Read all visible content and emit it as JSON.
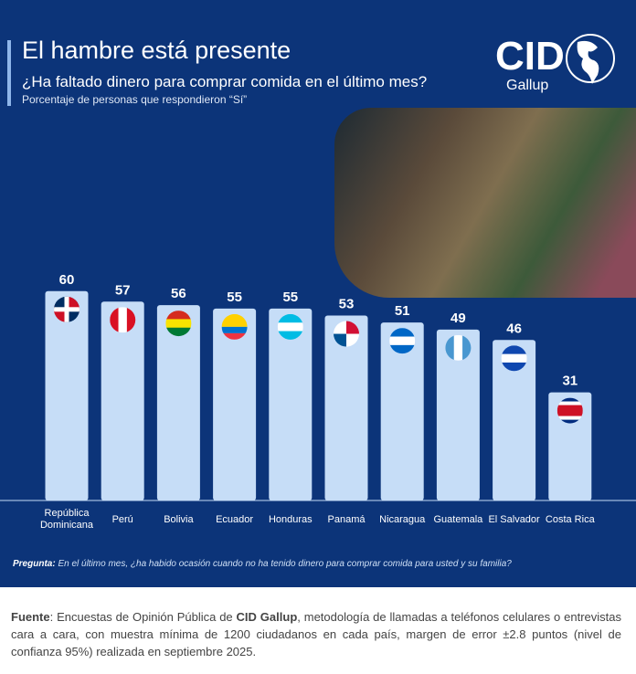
{
  "header": {
    "title": "El hambre está presente",
    "subtitle": "¿Ha faltado dinero para comprar comida en el último mes?",
    "note": "Porcentaje de personas que respondieron “Sí”"
  },
  "logo": {
    "text": "CID",
    "sub": "Gallup"
  },
  "colors": {
    "background": "#0c3479",
    "bar": "#c6ddf7",
    "text": "#ffffff"
  },
  "chart_data": {
    "type": "bar",
    "categories": [
      "República Dominicana",
      "Perú",
      "Bolivia",
      "Ecuador",
      "Honduras",
      "Panamá",
      "Nicaragua",
      "Guatemala",
      "El Salvador",
      "Costa Rica"
    ],
    "values": [
      60,
      57,
      56,
      55,
      55,
      53,
      51,
      49,
      46,
      31
    ],
    "flags": [
      "dominican-republic-flag-icon",
      "peru-flag-icon",
      "bolivia-flag-icon",
      "ecuador-flag-icon",
      "honduras-flag-icon",
      "panama-flag-icon",
      "nicaragua-flag-icon",
      "guatemala-flag-icon",
      "el-salvador-flag-icon",
      "costa-rica-flag-icon"
    ],
    "title": "",
    "xlabel": "",
    "ylabel": "",
    "ylim": [
      0,
      60
    ],
    "grid": false,
    "data_labels": true
  },
  "footer": {
    "pregunta_label": "Pregunta:",
    "pregunta_text": " En el último mes, ¿ha habido ocasión cuando no ha tenido dinero para comprar comida para usted y su familia?",
    "fuente_label": "Fuente",
    "fuente_a": ": Encuestas de Opinión Pública de ",
    "fuente_brand": "CID Gallup",
    "fuente_b": ", metodología de llamadas a teléfonos celulares o entrevistas cara a cara, con muestra mínima de 1200 ciudadanos en cada país, margen de error ±2.8 puntos (nivel de confianza 95%) realizada en septiembre 2025."
  }
}
